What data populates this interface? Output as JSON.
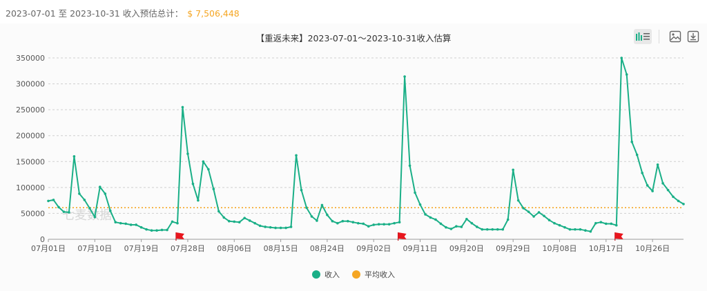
{
  "summary": {
    "label": "2023-07-01 至 2023-10-31 收入预估总计：",
    "total": "$ 7,506,448"
  },
  "watermark": "七麦数据",
  "toolbar": {
    "icons": [
      "bar-chart-icon",
      "list-icon",
      "image-icon",
      "download-icon"
    ]
  },
  "colors": {
    "revenue": "#1aaf87",
    "average": "#f5a623",
    "marker": "#e8161e"
  },
  "chart_data": {
    "type": "line",
    "title": "【重返未来】2023-07-01～2023-10-31收入估算",
    "xlabel": "",
    "ylabel": "",
    "ylim": [
      0,
      350000
    ],
    "yticks": [
      0,
      50000,
      100000,
      150000,
      200000,
      250000,
      300000,
      350000
    ],
    "x_start": "2023-07-01",
    "x_tick_labels": [
      "07月01日",
      "07月10日",
      "07月19日",
      "07月28日",
      "08月06日",
      "08月15日",
      "08月24日",
      "09月02日",
      "09月11日",
      "09月20日",
      "09月29日",
      "10月08日",
      "10月17日",
      "10月26日"
    ],
    "grid": true,
    "legend_position": "bottom",
    "series": [
      {
        "name": "收入",
        "values": [
          74000,
          76000,
          62000,
          53000,
          52000,
          160000,
          88000,
          76000,
          60000,
          43000,
          101000,
          88000,
          55000,
          33000,
          31000,
          30000,
          28000,
          28000,
          23000,
          19000,
          17000,
          17000,
          18000,
          18000,
          34000,
          31000,
          255000,
          165000,
          107000,
          75000,
          150000,
          135000,
          97000,
          54000,
          42000,
          35000,
          34000,
          33000,
          41000,
          36000,
          31000,
          26000,
          24000,
          23000,
          22000,
          22000,
          22000,
          24000,
          162000,
          95000,
          61000,
          44000,
          36000,
          66000,
          47000,
          35000,
          31000,
          35000,
          35000,
          33000,
          31000,
          30000,
          25000,
          28000,
          29000,
          29000,
          29000,
          31000,
          33000,
          314000,
          142000,
          90000,
          67000,
          48000,
          42000,
          38000,
          30000,
          23000,
          20000,
          25000,
          24000,
          39000,
          31000,
          24000,
          19000,
          19000,
          19000,
          19000,
          19000,
          38000,
          134000,
          75000,
          60000,
          53000,
          44000,
          52000,
          45000,
          37000,
          31000,
          27000,
          23000,
          19000,
          19000,
          19000,
          17000,
          15000,
          31000,
          33000,
          30000,
          30000,
          27000,
          350000,
          318000,
          188000,
          163000,
          128000,
          104000,
          93000,
          144000,
          108000,
          95000,
          82000,
          74000,
          68000
        ]
      },
      {
        "name": "平均收入",
        "values": [
          61000
        ]
      }
    ],
    "markers_at_index": [
      25,
      68,
      110
    ]
  }
}
